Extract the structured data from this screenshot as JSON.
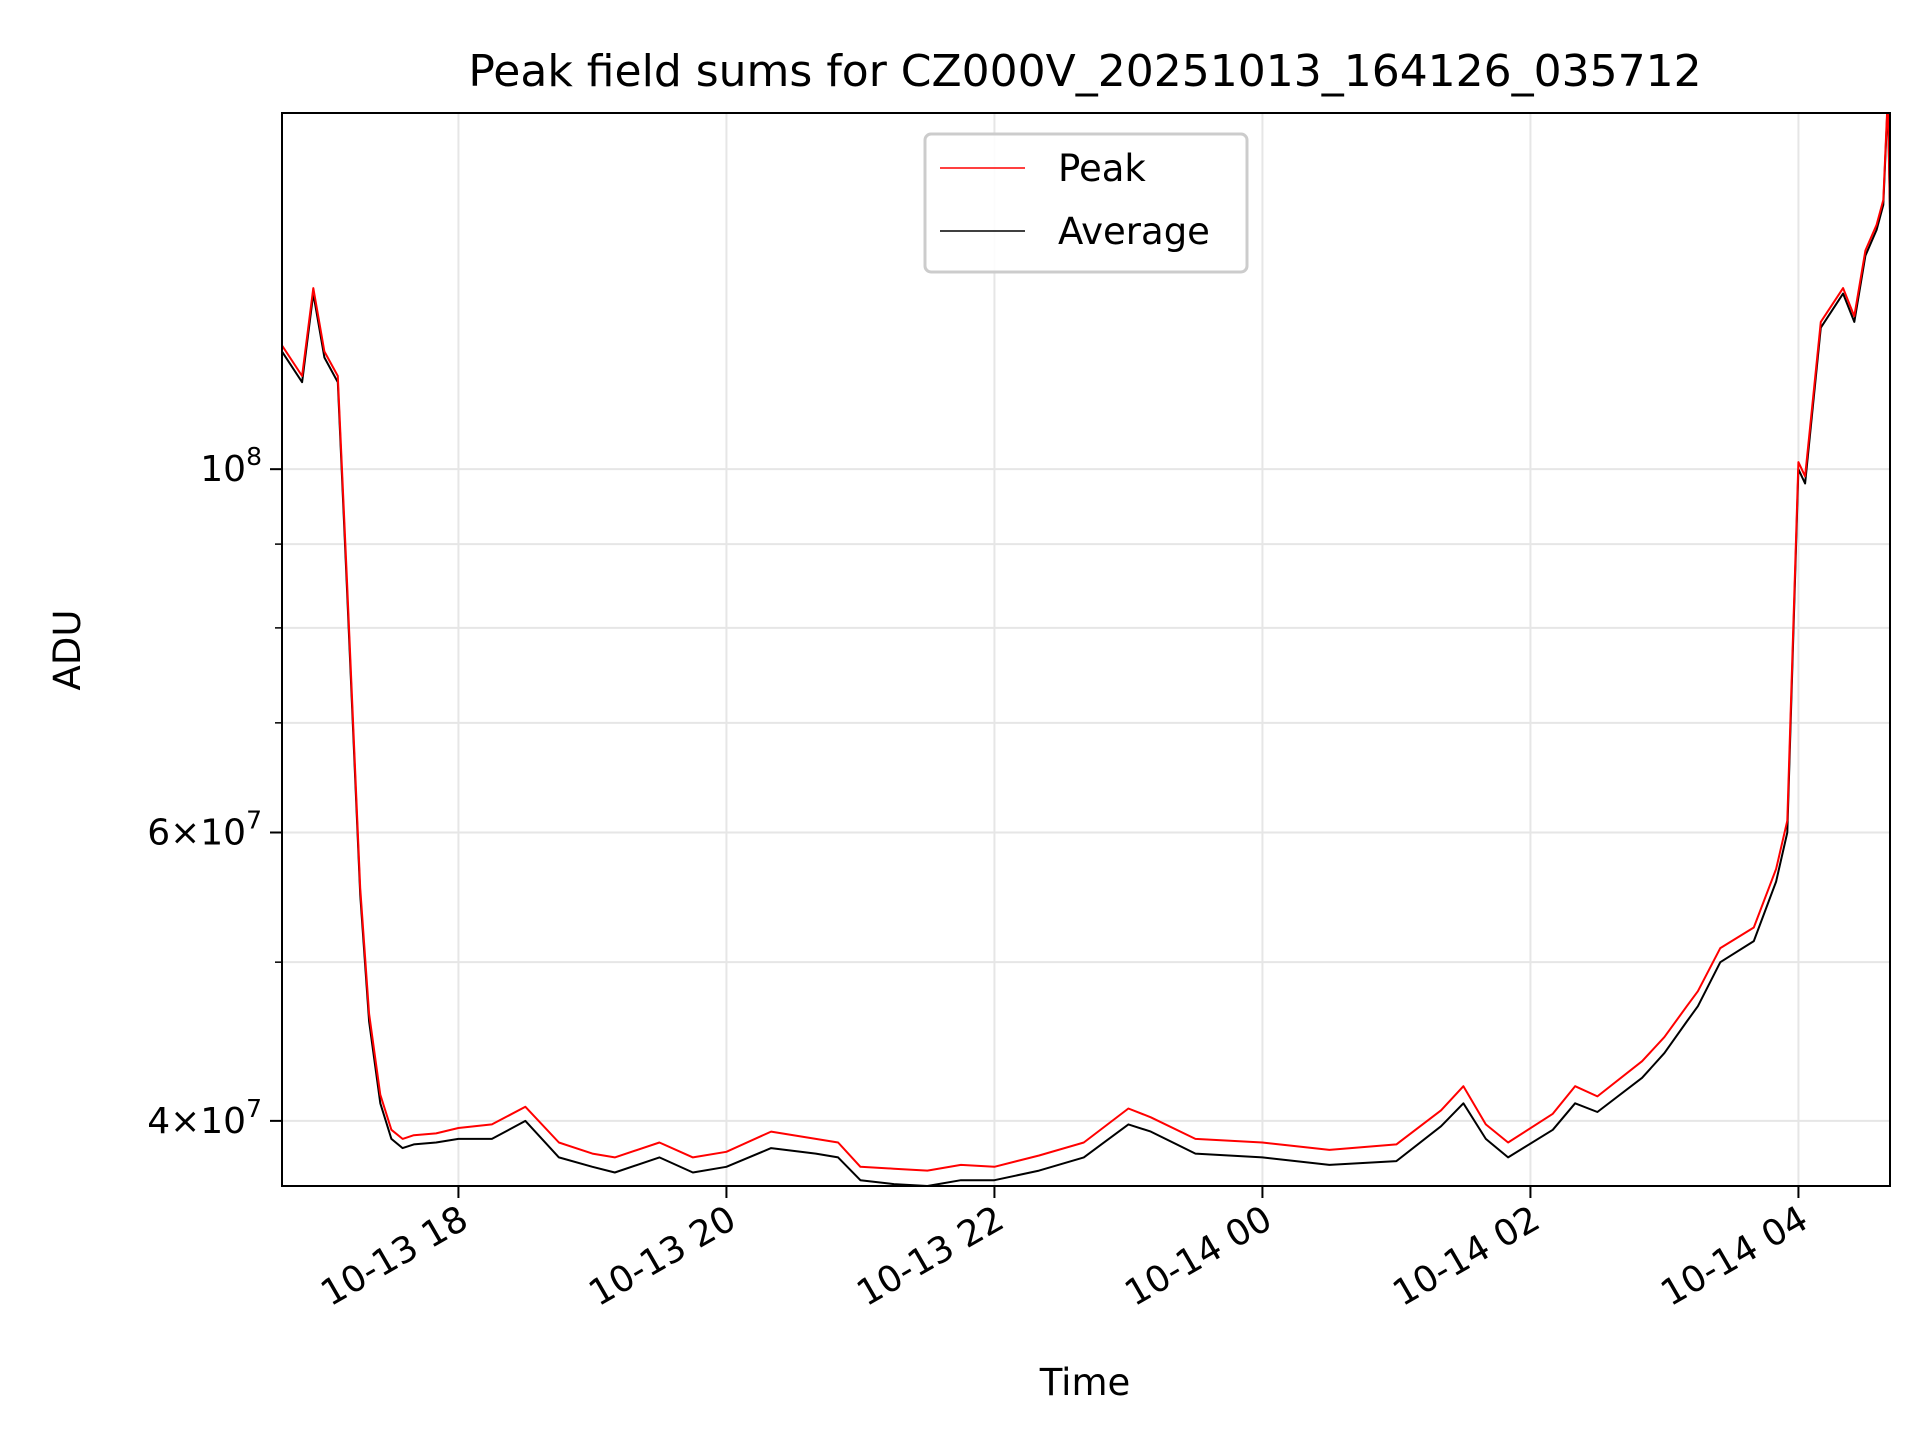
{
  "chart_data": {
    "type": "line",
    "title": "Peak field sums for CZ000V_20251013_164126_035712",
    "xlabel": "Time",
    "ylabel": "ADU",
    "yscale": "log",
    "xlim": [
      "2025-10-13 16:41",
      "2025-10-14 04:41"
    ],
    "ylim": [
      36500000,
      165000000
    ],
    "grid": true,
    "legend_position": "top-center",
    "x_ticks": [
      {
        "value": "2025-10-13 18:00",
        "label": "10-13 18"
      },
      {
        "value": "2025-10-13 20:00",
        "label": "10-13 20"
      },
      {
        "value": "2025-10-13 22:00",
        "label": "10-13 22"
      },
      {
        "value": "2025-10-14 00:00",
        "label": "10-14 00"
      },
      {
        "value": "2025-10-14 02:00",
        "label": "10-14 02"
      },
      {
        "value": "2025-10-14 04:00",
        "label": "10-14 04"
      }
    ],
    "y_major_ticks": [
      {
        "value": 40000000,
        "mantissa": "4",
        "exp": "7"
      },
      {
        "value": 60000000,
        "mantissa": "6",
        "exp": "7"
      },
      {
        "value": 100000000,
        "mantissa": "",
        "exp": "8"
      }
    ],
    "y_minor_ticks": [
      50000000,
      70000000,
      80000000,
      90000000
    ],
    "series": [
      {
        "name": "Average",
        "color": "#000000",
        "x": [
          "2025-10-13 16:41",
          "2025-10-13 16:50",
          "2025-10-13 16:55",
          "2025-10-13 17:00",
          "2025-10-13 17:06",
          "2025-10-13 17:10",
          "2025-10-13 17:16",
          "2025-10-13 17:20",
          "2025-10-13 17:25",
          "2025-10-13 17:30",
          "2025-10-13 17:35",
          "2025-10-13 17:40",
          "2025-10-13 17:50",
          "2025-10-13 18:00",
          "2025-10-13 18:15",
          "2025-10-13 18:30",
          "2025-10-13 18:45",
          "2025-10-13 19:00",
          "2025-10-13 19:10",
          "2025-10-13 19:30",
          "2025-10-13 19:45",
          "2025-10-13 20:00",
          "2025-10-13 20:20",
          "2025-10-13 20:40",
          "2025-10-13 20:50",
          "2025-10-13 21:00",
          "2025-10-13 21:15",
          "2025-10-13 21:30",
          "2025-10-13 21:45",
          "2025-10-13 22:00",
          "2025-10-13 22:20",
          "2025-10-13 22:40",
          "2025-10-13 23:00",
          "2025-10-13 23:10",
          "2025-10-13 23:30",
          "2025-10-14 00:00",
          "2025-10-14 00:30",
          "2025-10-14 01:00",
          "2025-10-14 01:20",
          "2025-10-14 01:30",
          "2025-10-14 01:40",
          "2025-10-14 01:50",
          "2025-10-14 02:10",
          "2025-10-14 02:20",
          "2025-10-14 02:30",
          "2025-10-14 02:50",
          "2025-10-14 03:00",
          "2025-10-14 03:10",
          "2025-10-14 03:15",
          "2025-10-14 03:25",
          "2025-10-14 03:40",
          "2025-10-14 03:50",
          "2025-10-14 03:55",
          "2025-10-14 04:00",
          "2025-10-14 04:03",
          "2025-10-14 04:10",
          "2025-10-14 04:20",
          "2025-10-14 04:25",
          "2025-10-14 04:30",
          "2025-10-14 04:35",
          "2025-10-14 04:38",
          "2025-10-14 04:40",
          "2025-10-14 04:41"
        ],
        "values": [
          118000000,
          113000000,
          128000000,
          117000000,
          113000000,
          85000000,
          55000000,
          46000000,
          41000000,
          39000000,
          38500000,
          38700000,
          38800000,
          39000000,
          39000000,
          40000000,
          38000000,
          37500000,
          37200000,
          38000000,
          37200000,
          37500000,
          38500000,
          38200000,
          38000000,
          36800000,
          36600000,
          36500000,
          36800000,
          36800000,
          37300000,
          38000000,
          39800000,
          39400000,
          38200000,
          38000000,
          37600000,
          37800000,
          39700000,
          41000000,
          39000000,
          38000000,
          39500000,
          41000000,
          40500000,
          42500000,
          44000000,
          46000000,
          47000000,
          50000000,
          51500000,
          56000000,
          60000000,
          100000000,
          98000000,
          122000000,
          128000000,
          123000000,
          135000000,
          140000000,
          145000000,
          168000000,
          143000000
        ]
      },
      {
        "name": "Peak",
        "color": "#ff0000",
        "x": [
          "2025-10-13 16:41",
          "2025-10-13 16:50",
          "2025-10-13 16:55",
          "2025-10-13 17:00",
          "2025-10-13 17:06",
          "2025-10-13 17:10",
          "2025-10-13 17:16",
          "2025-10-13 17:20",
          "2025-10-13 17:25",
          "2025-10-13 17:30",
          "2025-10-13 17:35",
          "2025-10-13 17:40",
          "2025-10-13 17:50",
          "2025-10-13 18:00",
          "2025-10-13 18:15",
          "2025-10-13 18:30",
          "2025-10-13 18:45",
          "2025-10-13 19:00",
          "2025-10-13 19:10",
          "2025-10-13 19:30",
          "2025-10-13 19:45",
          "2025-10-13 20:00",
          "2025-10-13 20:20",
          "2025-10-13 20:40",
          "2025-10-13 20:50",
          "2025-10-13 21:00",
          "2025-10-13 21:15",
          "2025-10-13 21:30",
          "2025-10-13 21:45",
          "2025-10-13 22:00",
          "2025-10-13 22:20",
          "2025-10-13 22:40",
          "2025-10-13 23:00",
          "2025-10-13 23:10",
          "2025-10-13 23:30",
          "2025-10-14 00:00",
          "2025-10-14 00:30",
          "2025-10-14 01:00",
          "2025-10-14 01:20",
          "2025-10-14 01:30",
          "2025-10-14 01:40",
          "2025-10-14 01:50",
          "2025-10-14 02:10",
          "2025-10-14 02:20",
          "2025-10-14 02:30",
          "2025-10-14 02:50",
          "2025-10-14 03:00",
          "2025-10-14 03:10",
          "2025-10-14 03:15",
          "2025-10-14 03:25",
          "2025-10-14 03:40",
          "2025-10-14 03:50",
          "2025-10-14 03:55",
          "2025-10-14 04:00",
          "2025-10-14 04:03",
          "2025-10-14 04:10",
          "2025-10-14 04:20",
          "2025-10-14 04:25",
          "2025-10-14 04:30",
          "2025-10-14 04:35",
          "2025-10-14 04:38",
          "2025-10-14 04:40",
          "2025-10-14 04:41"
        ],
        "values": [
          119000000,
          114000000,
          129000000,
          118000000,
          114000000,
          86000000,
          55500000,
          46500000,
          41500000,
          39500000,
          39000000,
          39200000,
          39300000,
          39600000,
          39800000,
          40800000,
          38800000,
          38200000,
          38000000,
          38800000,
          38000000,
          38300000,
          39400000,
          39000000,
          38800000,
          37500000,
          37400000,
          37300000,
          37600000,
          37500000,
          38100000,
          38800000,
          40700000,
          40200000,
          39000000,
          38800000,
          38400000,
          38700000,
          40600000,
          42000000,
          39800000,
          38800000,
          40400000,
          42000000,
          41400000,
          43500000,
          45000000,
          47000000,
          48000000,
          51000000,
          52500000,
          57000000,
          61000000,
          101000000,
          99000000,
          123000000,
          129000000,
          124000000,
          136000000,
          141000000,
          146000000,
          169000000,
          144000000
        ]
      }
    ]
  }
}
